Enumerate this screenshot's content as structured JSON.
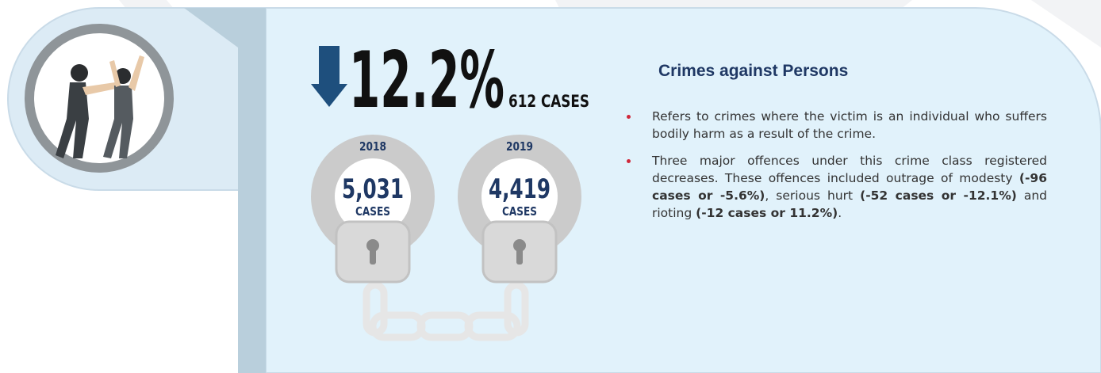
{
  "stat": {
    "change": "12.2%",
    "cases": "612 CASES"
  },
  "years": [
    {
      "year": "2018",
      "count": "5,031",
      "unit": "CASES"
    },
    {
      "year": "2019",
      "count": "4,419",
      "unit": "CASES"
    }
  ],
  "section": {
    "title": "Crimes against Persons",
    "bullets": [
      [
        {
          "text": "Refers to crimes where the victim is an individual who suffers bodily harm as a result of the crime.",
          "bold": false
        }
      ],
      [
        {
          "text": "Three major offences under this crime class registered decreases. These offences included outrage of modesty ",
          "bold": false
        },
        {
          "text": "(-96 cases or -5.6%)",
          "bold": true
        },
        {
          "text": ", serious hurt ",
          "bold": false
        },
        {
          "text": "(-52 cases or -12.1%)",
          "bold": true
        },
        {
          "text": " and rioting ",
          "bold": false
        },
        {
          "text": "(-12 cases or 11.2%)",
          "bold": true
        },
        {
          "text": ".",
          "bold": false
        }
      ]
    ]
  }
}
